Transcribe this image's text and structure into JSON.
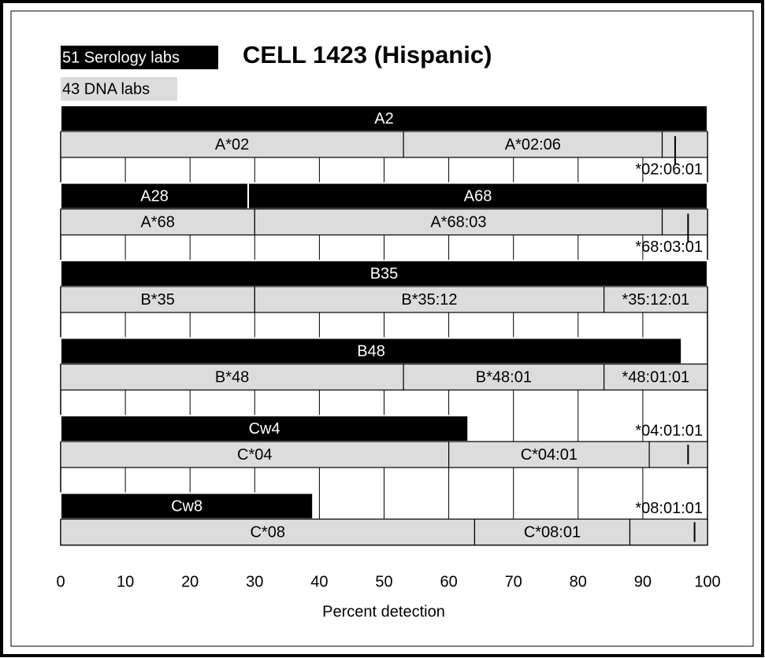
{
  "chart_data": {
    "type": "stacked_bar",
    "title": "CELL 1423 (Hispanic)",
    "legend": [
      {
        "name": "51 Serology labs",
        "color": "#000000"
      },
      {
        "name": "43 DNA labs",
        "color": "#dcdcdc"
      }
    ],
    "xlabel": "Percent detection",
    "xlim": [
      0,
      100
    ],
    "xticks": [
      0,
      10,
      20,
      30,
      40,
      50,
      60,
      70,
      80,
      90,
      100
    ],
    "grid": true,
    "groups": [
      {
        "serology": {
          "names": [
            "A2"
          ],
          "values": [
            100
          ]
        },
        "dna": {
          "names": [
            "A*02",
            "A*02:06",
            null
          ],
          "values": [
            53,
            40,
            7
          ]
        },
        "marker": {
          "value": 95,
          "label": "*02:06:01",
          "side": "below"
        }
      },
      {
        "serology": {
          "names": [
            "A28",
            "A68"
          ],
          "values": [
            29,
            71
          ]
        },
        "dna": {
          "names": [
            "A*68",
            "A*68:03",
            null
          ],
          "values": [
            30,
            63,
            7
          ]
        },
        "marker": {
          "value": 97,
          "label": "*68:03:01",
          "side": "below"
        }
      },
      {
        "serology": {
          "names": [
            "B35"
          ],
          "values": [
            100
          ]
        },
        "dna": {
          "names": [
            "B*35",
            "B*35:12",
            "*35:12:01"
          ],
          "values": [
            30,
            54,
            16
          ]
        }
      },
      {
        "serology": {
          "names": [
            "B48"
          ],
          "values": [
            96
          ]
        },
        "dna": {
          "names": [
            "B*48",
            "B*48:01",
            "*48:01:01"
          ],
          "values": [
            53,
            31,
            16
          ]
        }
      },
      {
        "serology": {
          "names": [
            "Cw4"
          ],
          "values": [
            63
          ]
        },
        "dna": {
          "names": [
            "C*04",
            "C*04:01",
            null
          ],
          "values": [
            60,
            31,
            9
          ]
        },
        "marker": {
          "value": 97,
          "label": "*04:01:01",
          "side": "above"
        }
      },
      {
        "serology": {
          "names": [
            "Cw8"
          ],
          "values": [
            39
          ]
        },
        "dna": {
          "names": [
            "C*08",
            "C*08:01",
            null
          ],
          "values": [
            64,
            24,
            12
          ]
        },
        "marker": {
          "value": 98,
          "label": "*08:01:01",
          "side": "above"
        }
      }
    ]
  }
}
